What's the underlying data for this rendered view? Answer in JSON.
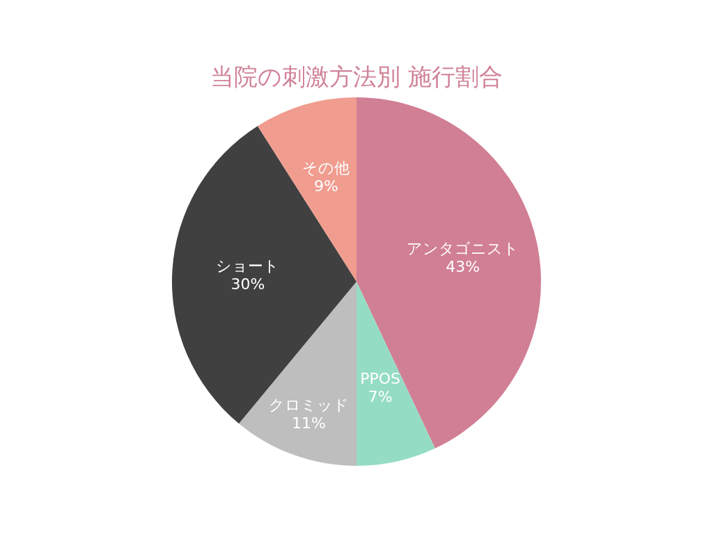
{
  "chart_data": {
    "type": "pie",
    "title": "当院の刺激方法別 施行割合",
    "categories": [
      "アンタゴニスト",
      "PPOS",
      "クロミッド",
      "ショート",
      "その他"
    ],
    "values": [
      43,
      7,
      11,
      30,
      9
    ],
    "value_labels": [
      "43%",
      "7%",
      "11%",
      "30%",
      "9%"
    ],
    "colors": [
      "#d17f95",
      "#95dcc4",
      "#bebebe",
      "#404040",
      "#f09c8f"
    ],
    "legend": false
  }
}
